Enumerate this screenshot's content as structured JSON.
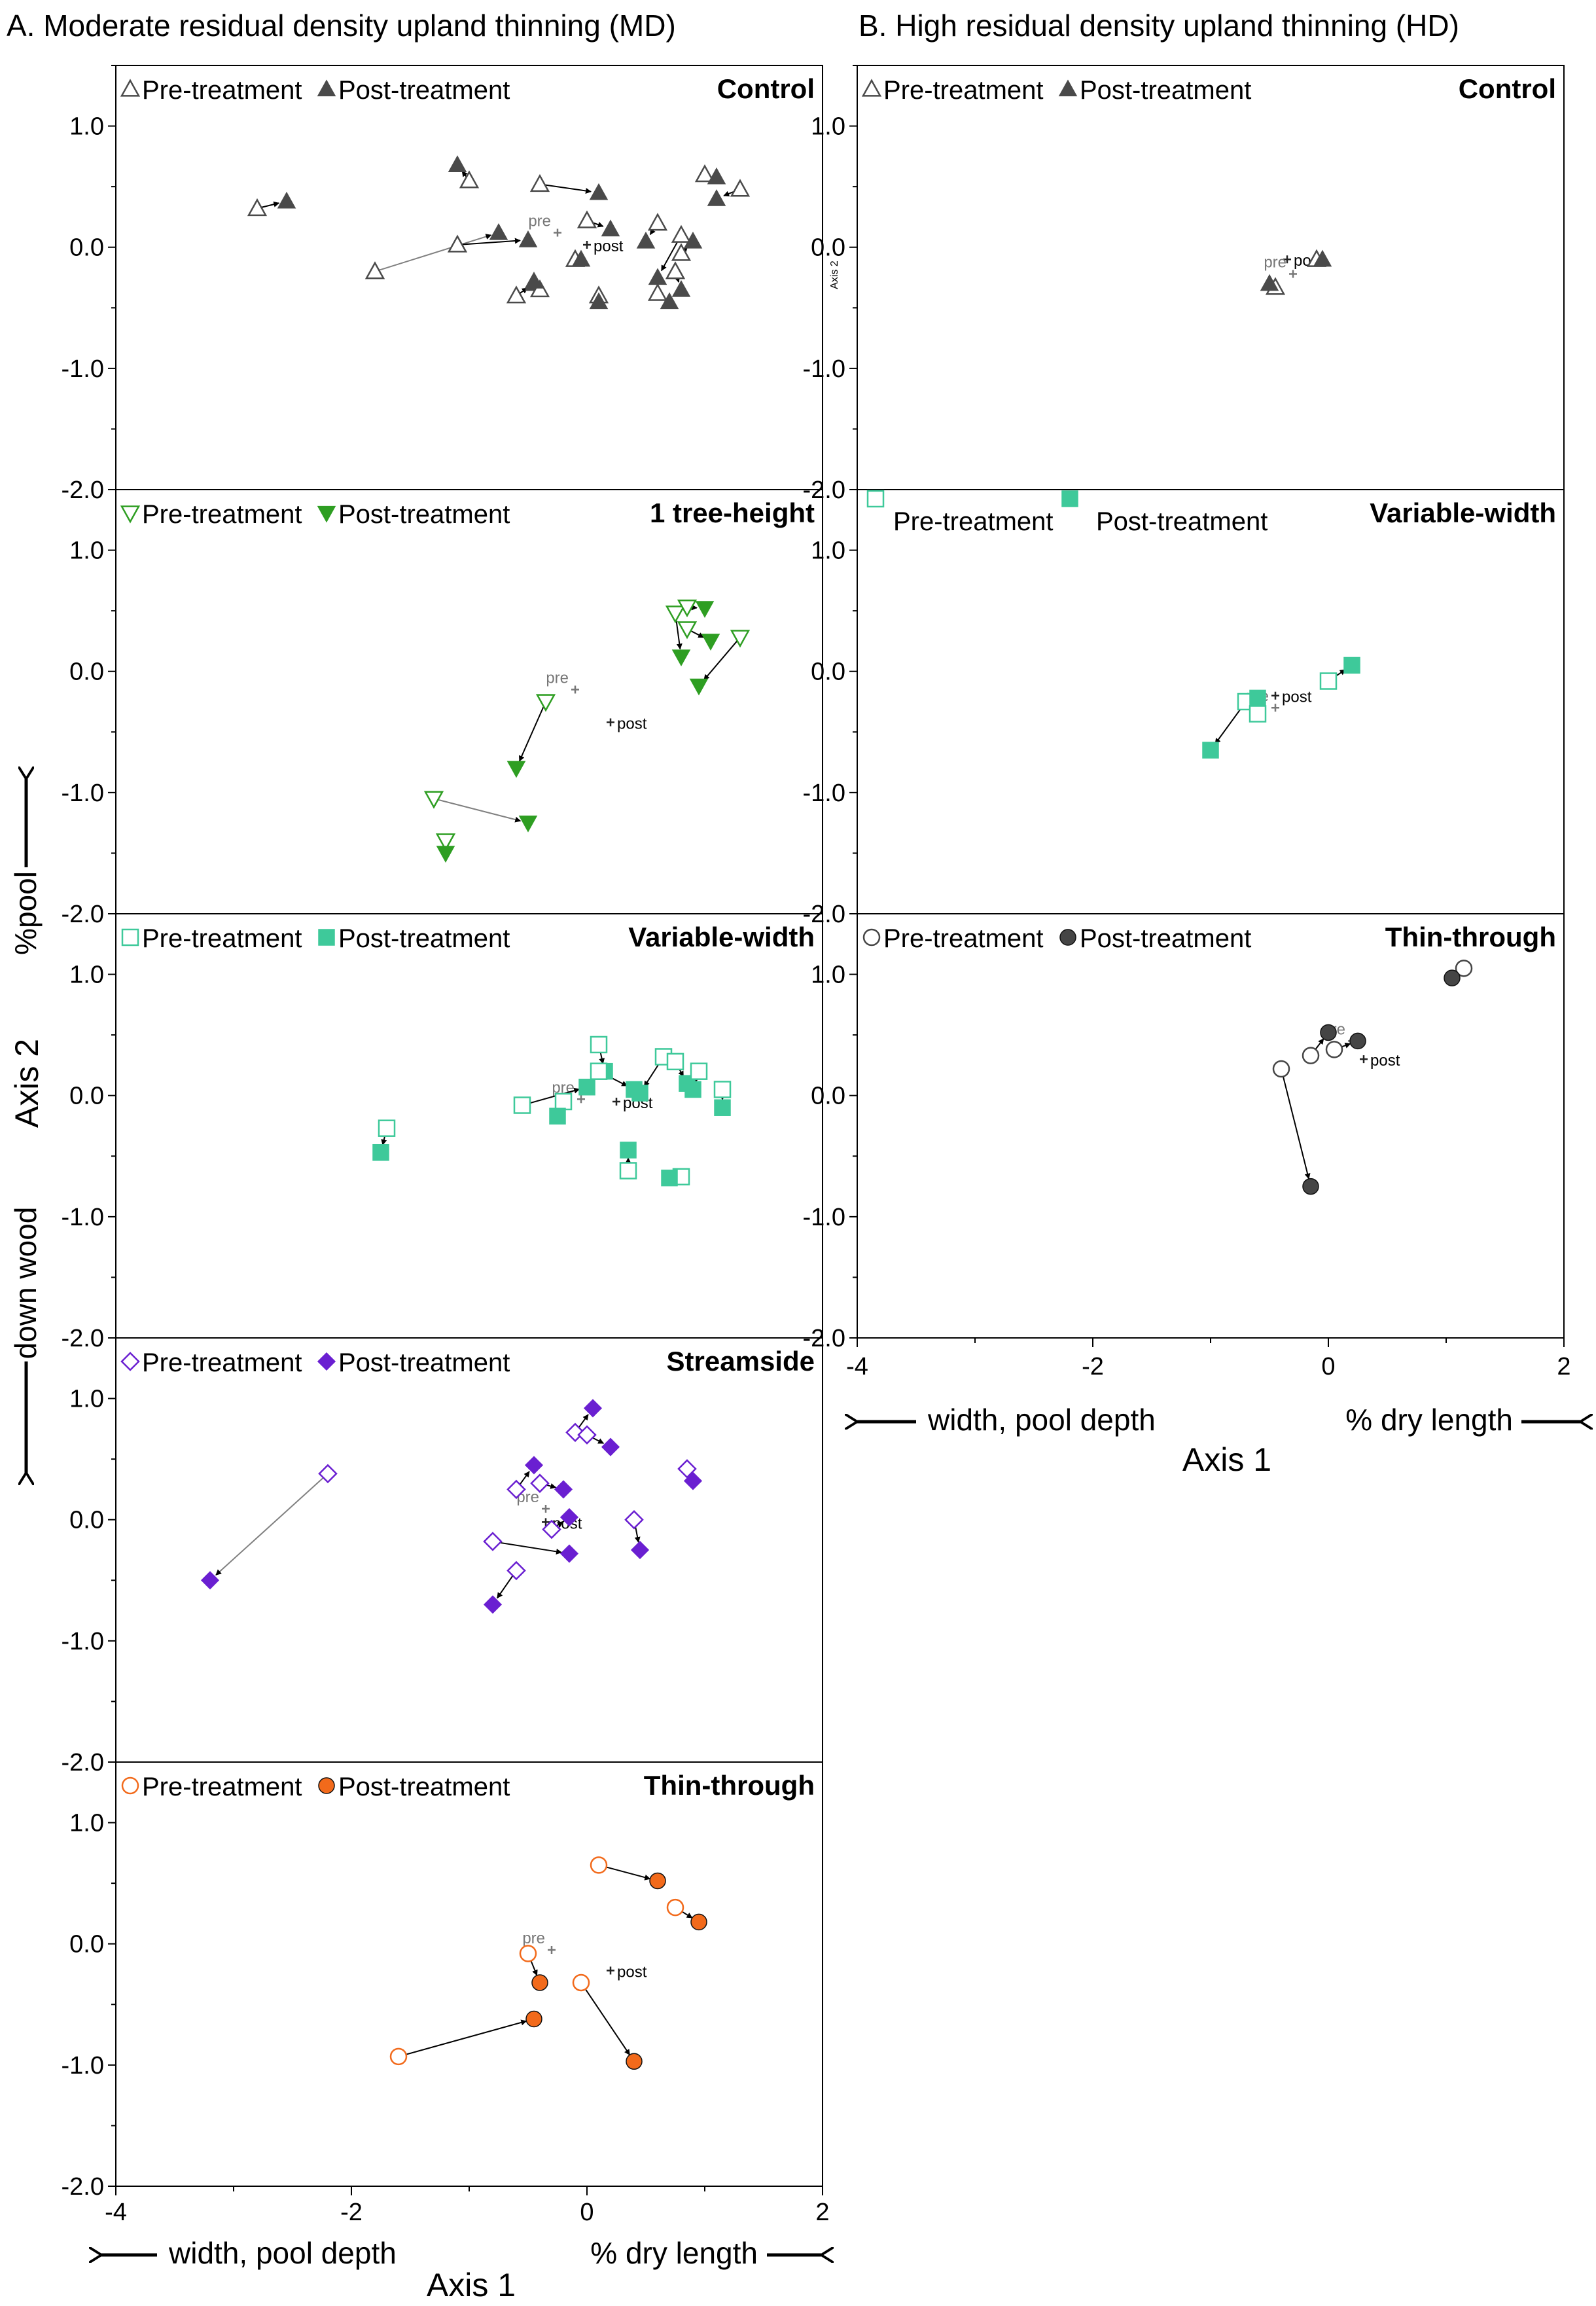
{
  "column_titles": {
    "A": "A. Moderate residual density upland thinning (MD)",
    "B": "B. High residual density upland thinning (HD)"
  },
  "axes": {
    "x_label": "Axis 1",
    "y_label": "Axis 2",
    "x_left_annotation": "width, pool depth",
    "x_right_annotation": "% dry length",
    "y_up_annotation": "%pool",
    "y_down_annotation": "down wood",
    "x_ticks": [
      "-4",
      "-2",
      "0",
      "2"
    ],
    "y_ticks": [
      "1.0",
      "0.0",
      "-1.0",
      "-2.0"
    ],
    "hd_control_small_axis_label": "Axis 2"
  },
  "legend": {
    "pre_label": "Pre-treatment",
    "post_label": "Post-treatment"
  },
  "centroid_labels": {
    "pre": "pre",
    "post": "post"
  },
  "colors": {
    "control": "#4a4a4a",
    "tree_height": "#2e9e22",
    "variable_width": "#3ec99a",
    "streamside": "#6a1fd1",
    "thin_through_md": "#f26a1b",
    "thin_through_hd": "#454545",
    "pre_arrow": "#808080",
    "post_arrow": "#000000"
  },
  "chart_data": [
    {
      "type": "scatter",
      "panel_id": "A-control",
      "title": "Control",
      "treatment": "Control",
      "density": "MD",
      "marker": "triangle-up",
      "color_key": "control",
      "xlim": [
        -4,
        2
      ],
      "ylim": [
        -2.0,
        1.5
      ],
      "centroids": {
        "pre": [
          -0.25,
          0.12
        ],
        "post": [
          0.0,
          0.02
        ]
      },
      "pairs": [
        {
          "pre": [
            -2.8,
            0.32
          ],
          "post": [
            -2.55,
            0.38
          ]
        },
        {
          "pre": [
            -1.0,
            0.55
          ],
          "post": [
            -1.1,
            0.68
          ]
        },
        {
          "pre": [
            -1.8,
            -0.2
          ],
          "post": [
            -0.75,
            0.12
          ]
        },
        {
          "pre": [
            -1.1,
            0.02
          ],
          "post": [
            -0.5,
            0.06
          ]
        },
        {
          "pre": [
            -0.4,
            0.52
          ],
          "post": [
            0.1,
            0.45
          ]
        },
        {
          "pre": [
            0.0,
            0.22
          ],
          "post": [
            0.2,
            0.15
          ]
        },
        {
          "pre": [
            -0.6,
            -0.4
          ],
          "post": [
            -0.45,
            -0.3
          ]
        },
        {
          "pre": [
            -0.4,
            -0.35
          ],
          "post": [
            -0.45,
            -0.28
          ]
        },
        {
          "pre": [
            -0.1,
            -0.1
          ],
          "post": [
            -0.05,
            -0.1
          ]
        },
        {
          "pre": [
            0.1,
            -0.4
          ],
          "post": [
            0.1,
            -0.45
          ]
        },
        {
          "pre": [
            0.6,
            0.2
          ],
          "post": [
            0.5,
            0.05
          ]
        },
        {
          "pre": [
            0.8,
            0.1
          ],
          "post": [
            0.6,
            -0.25
          ]
        },
        {
          "pre": [
            0.75,
            -0.2
          ],
          "post": [
            0.8,
            -0.35
          ]
        },
        {
          "pre": [
            0.6,
            -0.38
          ],
          "post": [
            0.7,
            -0.45
          ]
        },
        {
          "pre": [
            0.8,
            -0.05
          ],
          "post": [
            0.9,
            0.05
          ]
        },
        {
          "pre": [
            1.0,
            0.6
          ],
          "post": [
            1.1,
            0.58
          ]
        },
        {
          "pre": [
            1.3,
            0.48
          ],
          "post": [
            1.1,
            0.4
          ]
        }
      ]
    },
    {
      "type": "scatter",
      "panel_id": "A-tree-height",
      "title": "1 tree-height",
      "treatment": "1 tree-height",
      "density": "MD",
      "marker": "triangle-down",
      "color_key": "tree_height",
      "xlim": [
        -4,
        2
      ],
      "ylim": [
        -2.0,
        1.5
      ],
      "centroids": {
        "pre": [
          -0.1,
          -0.15
        ],
        "post": [
          0.2,
          -0.42
        ]
      },
      "pairs": [
        {
          "pre": [
            -0.35,
            -0.25
          ],
          "post": [
            -0.6,
            -0.8
          ]
        },
        {
          "pre": [
            -1.3,
            -1.05
          ],
          "post": [
            -0.5,
            -1.25
          ]
        },
        {
          "pre": [
            -1.2,
            -1.4
          ],
          "post": [
            -1.2,
            -1.5
          ]
        },
        {
          "pre": [
            0.75,
            0.48
          ],
          "post": [
            0.8,
            0.12
          ]
        },
        {
          "pre": [
            0.85,
            0.53
          ],
          "post": [
            1.0,
            0.52
          ]
        },
        {
          "pre": [
            0.85,
            0.35
          ],
          "post": [
            1.05,
            0.25
          ]
        },
        {
          "pre": [
            1.3,
            0.28
          ],
          "post": [
            0.95,
            -0.12
          ]
        }
      ]
    },
    {
      "type": "scatter",
      "panel_id": "A-variable-width",
      "title": "Variable-width",
      "treatment": "Variable-width",
      "density": "MD",
      "marker": "square",
      "color_key": "variable_width",
      "xlim": [
        -4,
        2
      ],
      "ylim": [
        -2.0,
        1.5
      ],
      "centroids": {
        "pre": [
          -0.05,
          -0.03
        ],
        "post": [
          0.25,
          -0.05
        ]
      },
      "pairs": [
        {
          "pre": [
            -1.7,
            -0.27
          ],
          "post": [
            -1.75,
            -0.47
          ]
        },
        {
          "pre": [
            -0.55,
            -0.08
          ],
          "post": [
            0.0,
            0.07
          ]
        },
        {
          "pre": [
            0.1,
            0.42
          ],
          "post": [
            0.15,
            0.2
          ]
        },
        {
          "pre": [
            0.1,
            0.2
          ],
          "post": [
            0.4,
            0.05
          ]
        },
        {
          "pre": [
            0.65,
            0.32
          ],
          "post": [
            0.45,
            0.02
          ]
        },
        {
          "pre": [
            0.75,
            0.28
          ],
          "post": [
            0.85,
            0.1
          ]
        },
        {
          "pre": [
            0.95,
            0.2
          ],
          "post": [
            0.9,
            0.05
          ]
        },
        {
          "pre": [
            1.15,
            0.05
          ],
          "post": [
            1.15,
            -0.1
          ]
        },
        {
          "pre": [
            -0.2,
            -0.05
          ],
          "post": [
            -0.25,
            -0.17
          ]
        },
        {
          "pre": [
            0.35,
            -0.62
          ],
          "post": [
            0.35,
            -0.45
          ]
        },
        {
          "pre": [
            0.8,
            -0.67
          ],
          "post": [
            0.7,
            -0.68
          ]
        }
      ]
    },
    {
      "type": "scatter",
      "panel_id": "A-streamside",
      "title": "Streamside",
      "treatment": "Streamside",
      "density": "MD",
      "marker": "diamond",
      "color_key": "streamside",
      "xlim": [
        -4,
        2
      ],
      "ylim": [
        -2.0,
        1.5
      ],
      "centroids": {
        "pre": [
          -0.35,
          0.09
        ],
        "post": [
          -0.35,
          -0.02
        ]
      },
      "pairs": [
        {
          "pre": [
            -2.2,
            0.38
          ],
          "post": [
            -3.2,
            -0.5
          ]
        },
        {
          "pre": [
            -0.6,
            0.25
          ],
          "post": [
            -0.45,
            0.45
          ]
        },
        {
          "pre": [
            -0.4,
            0.3
          ],
          "post": [
            -0.2,
            0.25
          ]
        },
        {
          "pre": [
            -0.1,
            0.72
          ],
          "post": [
            0.05,
            0.92
          ]
        },
        {
          "pre": [
            0.0,
            0.7
          ],
          "post": [
            0.2,
            0.6
          ]
        },
        {
          "pre": [
            -0.3,
            -0.08
          ],
          "post": [
            -0.15,
            0.02
          ]
        },
        {
          "pre": [
            -0.8,
            -0.18
          ],
          "post": [
            -0.15,
            -0.28
          ]
        },
        {
          "pre": [
            -0.6,
            -0.42
          ],
          "post": [
            -0.8,
            -0.7
          ]
        },
        {
          "pre": [
            0.4,
            0.0
          ],
          "post": [
            0.45,
            -0.25
          ]
        },
        {
          "pre": [
            0.85,
            0.42
          ],
          "post": [
            0.9,
            0.32
          ]
        }
      ]
    },
    {
      "type": "scatter",
      "panel_id": "A-thin-through",
      "title": "Thin-through",
      "treatment": "Thin-through",
      "density": "MD",
      "marker": "circle",
      "color_key": "thin_through_md",
      "xlim": [
        -4,
        2
      ],
      "ylim": [
        -2.0,
        1.5
      ],
      "centroids": {
        "pre": [
          -0.3,
          -0.05
        ],
        "post": [
          0.2,
          -0.22
        ]
      },
      "pairs": [
        {
          "pre": [
            0.1,
            0.65
          ],
          "post": [
            0.6,
            0.52
          ]
        },
        {
          "pre": [
            0.75,
            0.3
          ],
          "post": [
            0.95,
            0.18
          ]
        },
        {
          "pre": [
            -0.5,
            -0.08
          ],
          "post": [
            -0.4,
            -0.32
          ]
        },
        {
          "pre": [
            -0.05,
            -0.32
          ],
          "post": [
            0.4,
            -0.97
          ]
        },
        {
          "pre": [
            -1.6,
            -0.93
          ],
          "post": [
            -0.45,
            -0.62
          ]
        }
      ]
    },
    {
      "type": "scatter",
      "panel_id": "B-control",
      "title": "Control",
      "treatment": "Control",
      "density": "HD",
      "marker": "triangle-up",
      "color_key": "control",
      "xlim": [
        -4,
        2
      ],
      "ylim": [
        -2.0,
        1.5
      ],
      "centroids": {
        "pre": [
          -0.3,
          -0.22
        ],
        "post": [
          -0.35,
          -0.1
        ]
      },
      "pairs": [
        {
          "pre": [
            -0.1,
            -0.1
          ],
          "post": [
            -0.05,
            -0.1
          ]
        },
        {
          "pre": [
            -0.45,
            -0.33
          ],
          "post": [
            -0.5,
            -0.3
          ]
        }
      ]
    },
    {
      "type": "scatter",
      "panel_id": "B-variable-width",
      "title": "Variable-width",
      "treatment": "Variable-width",
      "density": "HD",
      "marker": "square",
      "color_key": "variable_width",
      "xlim": [
        -4,
        2
      ],
      "ylim": [
        -2.0,
        1.5
      ],
      "centroids": {
        "pre": [
          -0.45,
          -0.3
        ],
        "post": [
          -0.45,
          -0.2
        ]
      },
      "pairs": [
        {
          "pre": [
            -0.7,
            -0.25
          ],
          "post": [
            -1.0,
            -0.65
          ]
        },
        {
          "pre": [
            -0.6,
            -0.35
          ],
          "post": [
            -0.6,
            -0.22
          ]
        },
        {
          "pre": [
            0.0,
            -0.08
          ],
          "post": [
            0.2,
            0.05
          ]
        }
      ]
    },
    {
      "type": "scatter",
      "panel_id": "B-thin-through",
      "title": "Thin-through",
      "treatment": "Thin-through",
      "density": "HD",
      "marker": "circle",
      "color_key": "thin_through_hd",
      "xlim": [
        -4,
        2
      ],
      "ylim": [
        -2.0,
        1.5
      ],
      "centroids": {
        "pre": [
          0.2,
          0.45
        ],
        "post": [
          0.3,
          0.3
        ]
      },
      "pairs": [
        {
          "pre": [
            -0.4,
            0.22
          ],
          "post": [
            -0.15,
            -0.75
          ]
        },
        {
          "pre": [
            -0.15,
            0.33
          ],
          "post": [
            0.0,
            0.52
          ]
        },
        {
          "pre": [
            0.05,
            0.38
          ],
          "post": [
            0.25,
            0.45
          ]
        },
        {
          "pre": [
            1.15,
            1.05
          ],
          "post": [
            1.05,
            0.97
          ]
        }
      ]
    }
  ]
}
